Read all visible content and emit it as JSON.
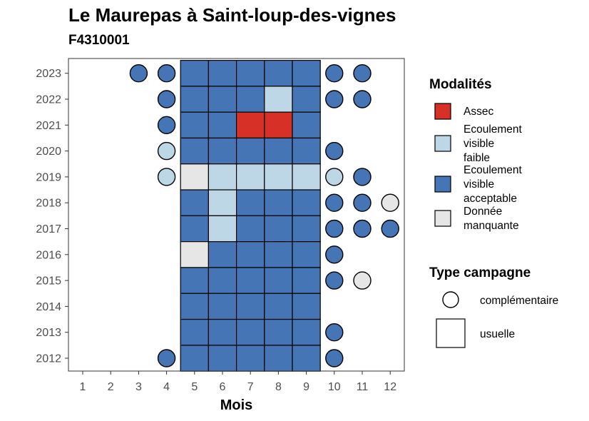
{
  "chart_data": {
    "type": "heatmap",
    "title": "Le Maurepas à Saint-loup-des-vignes",
    "subtitle": "F4310001",
    "xlabel": "Mois",
    "ylabel": "",
    "x_categories": [
      1,
      2,
      3,
      4,
      5,
      6,
      7,
      8,
      9,
      10,
      11,
      12
    ],
    "y_categories": [
      2012,
      2013,
      2014,
      2015,
      2016,
      2017,
      2018,
      2019,
      2020,
      2021,
      2022,
      2023
    ],
    "colors": {
      "Assec": "#d73027",
      "Ecoulement visible faible": "#bdd7e7",
      "Ecoulement visible acceptable": "#4575b4",
      "Donnée manquante": "#e6e6e6"
    },
    "legend": {
      "modalites_title": "Modalités",
      "modalites": [
        {
          "key": "Assec",
          "lines": [
            "Assec"
          ]
        },
        {
          "key": "Ecoulement visible faible",
          "lines": [
            "Ecoulement",
            "visible",
            "faible"
          ]
        },
        {
          "key": "Ecoulement visible acceptable",
          "lines": [
            "Ecoulement",
            "visible",
            "acceptable"
          ]
        },
        {
          "key": "Donnée manquante",
          "lines": [
            "Donnée",
            "manquante"
          ]
        }
      ],
      "campagne_title": "Type campagne",
      "campagnes": [
        {
          "shape": "circle",
          "label": "complémentaire"
        },
        {
          "shape": "square",
          "label": "usuelle"
        }
      ]
    },
    "points": [
      {
        "year": 2023,
        "month": 3,
        "type": "complémentaire",
        "modalite": "Ecoulement visible acceptable"
      },
      {
        "year": 2023,
        "month": 4,
        "type": "complémentaire",
        "modalite": "Ecoulement visible acceptable"
      },
      {
        "year": 2023,
        "month": 5,
        "type": "usuelle",
        "modalite": "Ecoulement visible acceptable"
      },
      {
        "year": 2023,
        "month": 6,
        "type": "usuelle",
        "modalite": "Ecoulement visible acceptable"
      },
      {
        "year": 2023,
        "month": 7,
        "type": "usuelle",
        "modalite": "Ecoulement visible acceptable"
      },
      {
        "year": 2023,
        "month": 8,
        "type": "usuelle",
        "modalite": "Ecoulement visible acceptable"
      },
      {
        "year": 2023,
        "month": 9,
        "type": "usuelle",
        "modalite": "Ecoulement visible acceptable"
      },
      {
        "year": 2023,
        "month": 10,
        "type": "complémentaire",
        "modalite": "Ecoulement visible acceptable"
      },
      {
        "year": 2023,
        "month": 11,
        "type": "complémentaire",
        "modalite": "Ecoulement visible acceptable"
      },
      {
        "year": 2022,
        "month": 4,
        "type": "complémentaire",
        "modalite": "Ecoulement visible acceptable"
      },
      {
        "year": 2022,
        "month": 5,
        "type": "usuelle",
        "modalite": "Ecoulement visible acceptable"
      },
      {
        "year": 2022,
        "month": 6,
        "type": "usuelle",
        "modalite": "Ecoulement visible acceptable"
      },
      {
        "year": 2022,
        "month": 7,
        "type": "usuelle",
        "modalite": "Ecoulement visible acceptable"
      },
      {
        "year": 2022,
        "month": 8,
        "type": "usuelle",
        "modalite": "Ecoulement visible faible"
      },
      {
        "year": 2022,
        "month": 9,
        "type": "usuelle",
        "modalite": "Ecoulement visible acceptable"
      },
      {
        "year": 2022,
        "month": 10,
        "type": "complémentaire",
        "modalite": "Ecoulement visible acceptable"
      },
      {
        "year": 2022,
        "month": 11,
        "type": "complémentaire",
        "modalite": "Ecoulement visible acceptable"
      },
      {
        "year": 2021,
        "month": 4,
        "type": "complémentaire",
        "modalite": "Ecoulement visible acceptable"
      },
      {
        "year": 2021,
        "month": 5,
        "type": "usuelle",
        "modalite": "Ecoulement visible acceptable"
      },
      {
        "year": 2021,
        "month": 6,
        "type": "usuelle",
        "modalite": "Ecoulement visible acceptable"
      },
      {
        "year": 2021,
        "month": 7,
        "type": "usuelle",
        "modalite": "Assec"
      },
      {
        "year": 2021,
        "month": 8,
        "type": "usuelle",
        "modalite": "Assec"
      },
      {
        "year": 2021,
        "month": 9,
        "type": "usuelle",
        "modalite": "Ecoulement visible acceptable"
      },
      {
        "year": 2020,
        "month": 4,
        "type": "complémentaire",
        "modalite": "Ecoulement visible faible"
      },
      {
        "year": 2020,
        "month": 5,
        "type": "usuelle",
        "modalite": "Ecoulement visible acceptable"
      },
      {
        "year": 2020,
        "month": 6,
        "type": "usuelle",
        "modalite": "Ecoulement visible acceptable"
      },
      {
        "year": 2020,
        "month": 7,
        "type": "usuelle",
        "modalite": "Ecoulement visible acceptable"
      },
      {
        "year": 2020,
        "month": 8,
        "type": "usuelle",
        "modalite": "Ecoulement visible acceptable"
      },
      {
        "year": 2020,
        "month": 9,
        "type": "usuelle",
        "modalite": "Ecoulement visible acceptable"
      },
      {
        "year": 2020,
        "month": 10,
        "type": "complémentaire",
        "modalite": "Ecoulement visible acceptable"
      },
      {
        "year": 2019,
        "month": 4,
        "type": "complémentaire",
        "modalite": "Ecoulement visible faible"
      },
      {
        "year": 2019,
        "month": 5,
        "type": "usuelle",
        "modalite": "Donnée manquante"
      },
      {
        "year": 2019,
        "month": 6,
        "type": "usuelle",
        "modalite": "Ecoulement visible faible"
      },
      {
        "year": 2019,
        "month": 7,
        "type": "usuelle",
        "modalite": "Ecoulement visible faible"
      },
      {
        "year": 2019,
        "month": 8,
        "type": "usuelle",
        "modalite": "Ecoulement visible faible"
      },
      {
        "year": 2019,
        "month": 9,
        "type": "usuelle",
        "modalite": "Ecoulement visible faible"
      },
      {
        "year": 2019,
        "month": 10,
        "type": "complémentaire",
        "modalite": "Ecoulement visible faible"
      },
      {
        "year": 2019,
        "month": 11,
        "type": "complémentaire",
        "modalite": "Ecoulement visible acceptable"
      },
      {
        "year": 2018,
        "month": 5,
        "type": "usuelle",
        "modalite": "Ecoulement visible acceptable"
      },
      {
        "year": 2018,
        "month": 6,
        "type": "usuelle",
        "modalite": "Ecoulement visible faible"
      },
      {
        "year": 2018,
        "month": 7,
        "type": "usuelle",
        "modalite": "Ecoulement visible acceptable"
      },
      {
        "year": 2018,
        "month": 8,
        "type": "usuelle",
        "modalite": "Ecoulement visible acceptable"
      },
      {
        "year": 2018,
        "month": 9,
        "type": "usuelle",
        "modalite": "Ecoulement visible acceptable"
      },
      {
        "year": 2018,
        "month": 10,
        "type": "complémentaire",
        "modalite": "Ecoulement visible acceptable"
      },
      {
        "year": 2018,
        "month": 11,
        "type": "complémentaire",
        "modalite": "Ecoulement visible acceptable"
      },
      {
        "year": 2018,
        "month": 12,
        "type": "complémentaire",
        "modalite": "Donnée manquante"
      },
      {
        "year": 2017,
        "month": 5,
        "type": "usuelle",
        "modalite": "Ecoulement visible acceptable"
      },
      {
        "year": 2017,
        "month": 6,
        "type": "usuelle",
        "modalite": "Ecoulement visible faible"
      },
      {
        "year": 2017,
        "month": 7,
        "type": "usuelle",
        "modalite": "Ecoulement visible acceptable"
      },
      {
        "year": 2017,
        "month": 8,
        "type": "usuelle",
        "modalite": "Ecoulement visible acceptable"
      },
      {
        "year": 2017,
        "month": 9,
        "type": "usuelle",
        "modalite": "Ecoulement visible acceptable"
      },
      {
        "year": 2017,
        "month": 10,
        "type": "complémentaire",
        "modalite": "Ecoulement visible acceptable"
      },
      {
        "year": 2017,
        "month": 11,
        "type": "complémentaire",
        "modalite": "Ecoulement visible acceptable"
      },
      {
        "year": 2017,
        "month": 12,
        "type": "complémentaire",
        "modalite": "Ecoulement visible acceptable"
      },
      {
        "year": 2016,
        "month": 5,
        "type": "usuelle",
        "modalite": "Donnée manquante"
      },
      {
        "year": 2016,
        "month": 6,
        "type": "usuelle",
        "modalite": "Ecoulement visible acceptable"
      },
      {
        "year": 2016,
        "month": 7,
        "type": "usuelle",
        "modalite": "Ecoulement visible acceptable"
      },
      {
        "year": 2016,
        "month": 8,
        "type": "usuelle",
        "modalite": "Ecoulement visible acceptable"
      },
      {
        "year": 2016,
        "month": 9,
        "type": "usuelle",
        "modalite": "Ecoulement visible acceptable"
      },
      {
        "year": 2016,
        "month": 10,
        "type": "complémentaire",
        "modalite": "Ecoulement visible acceptable"
      },
      {
        "year": 2015,
        "month": 5,
        "type": "usuelle",
        "modalite": "Ecoulement visible acceptable"
      },
      {
        "year": 2015,
        "month": 6,
        "type": "usuelle",
        "modalite": "Ecoulement visible acceptable"
      },
      {
        "year": 2015,
        "month": 7,
        "type": "usuelle",
        "modalite": "Ecoulement visible acceptable"
      },
      {
        "year": 2015,
        "month": 8,
        "type": "usuelle",
        "modalite": "Ecoulement visible acceptable"
      },
      {
        "year": 2015,
        "month": 9,
        "type": "usuelle",
        "modalite": "Ecoulement visible acceptable"
      },
      {
        "year": 2015,
        "month": 10,
        "type": "complémentaire",
        "modalite": "Ecoulement visible acceptable"
      },
      {
        "year": 2015,
        "month": 11,
        "type": "complémentaire",
        "modalite": "Donnée manquante"
      },
      {
        "year": 2014,
        "month": 5,
        "type": "usuelle",
        "modalite": "Ecoulement visible acceptable"
      },
      {
        "year": 2014,
        "month": 6,
        "type": "usuelle",
        "modalite": "Ecoulement visible acceptable"
      },
      {
        "year": 2014,
        "month": 7,
        "type": "usuelle",
        "modalite": "Ecoulement visible acceptable"
      },
      {
        "year": 2014,
        "month": 8,
        "type": "usuelle",
        "modalite": "Ecoulement visible acceptable"
      },
      {
        "year": 2014,
        "month": 9,
        "type": "usuelle",
        "modalite": "Ecoulement visible acceptable"
      },
      {
        "year": 2013,
        "month": 5,
        "type": "usuelle",
        "modalite": "Ecoulement visible acceptable"
      },
      {
        "year": 2013,
        "month": 6,
        "type": "usuelle",
        "modalite": "Ecoulement visible acceptable"
      },
      {
        "year": 2013,
        "month": 7,
        "type": "usuelle",
        "modalite": "Ecoulement visible acceptable"
      },
      {
        "year": 2013,
        "month": 8,
        "type": "usuelle",
        "modalite": "Ecoulement visible acceptable"
      },
      {
        "year": 2013,
        "month": 9,
        "type": "usuelle",
        "modalite": "Ecoulement visible acceptable"
      },
      {
        "year": 2013,
        "month": 10,
        "type": "complémentaire",
        "modalite": "Ecoulement visible acceptable"
      },
      {
        "year": 2012,
        "month": 4,
        "type": "complémentaire",
        "modalite": "Ecoulement visible acceptable"
      },
      {
        "year": 2012,
        "month": 5,
        "type": "usuelle",
        "modalite": "Ecoulement visible acceptable"
      },
      {
        "year": 2012,
        "month": 6,
        "type": "usuelle",
        "modalite": "Ecoulement visible acceptable"
      },
      {
        "year": 2012,
        "month": 7,
        "type": "usuelle",
        "modalite": "Ecoulement visible acceptable"
      },
      {
        "year": 2012,
        "month": 8,
        "type": "usuelle",
        "modalite": "Ecoulement visible acceptable"
      },
      {
        "year": 2012,
        "month": 9,
        "type": "usuelle",
        "modalite": "Ecoulement visible acceptable"
      },
      {
        "year": 2012,
        "month": 10,
        "type": "complémentaire",
        "modalite": "Ecoulement visible acceptable"
      }
    ]
  }
}
